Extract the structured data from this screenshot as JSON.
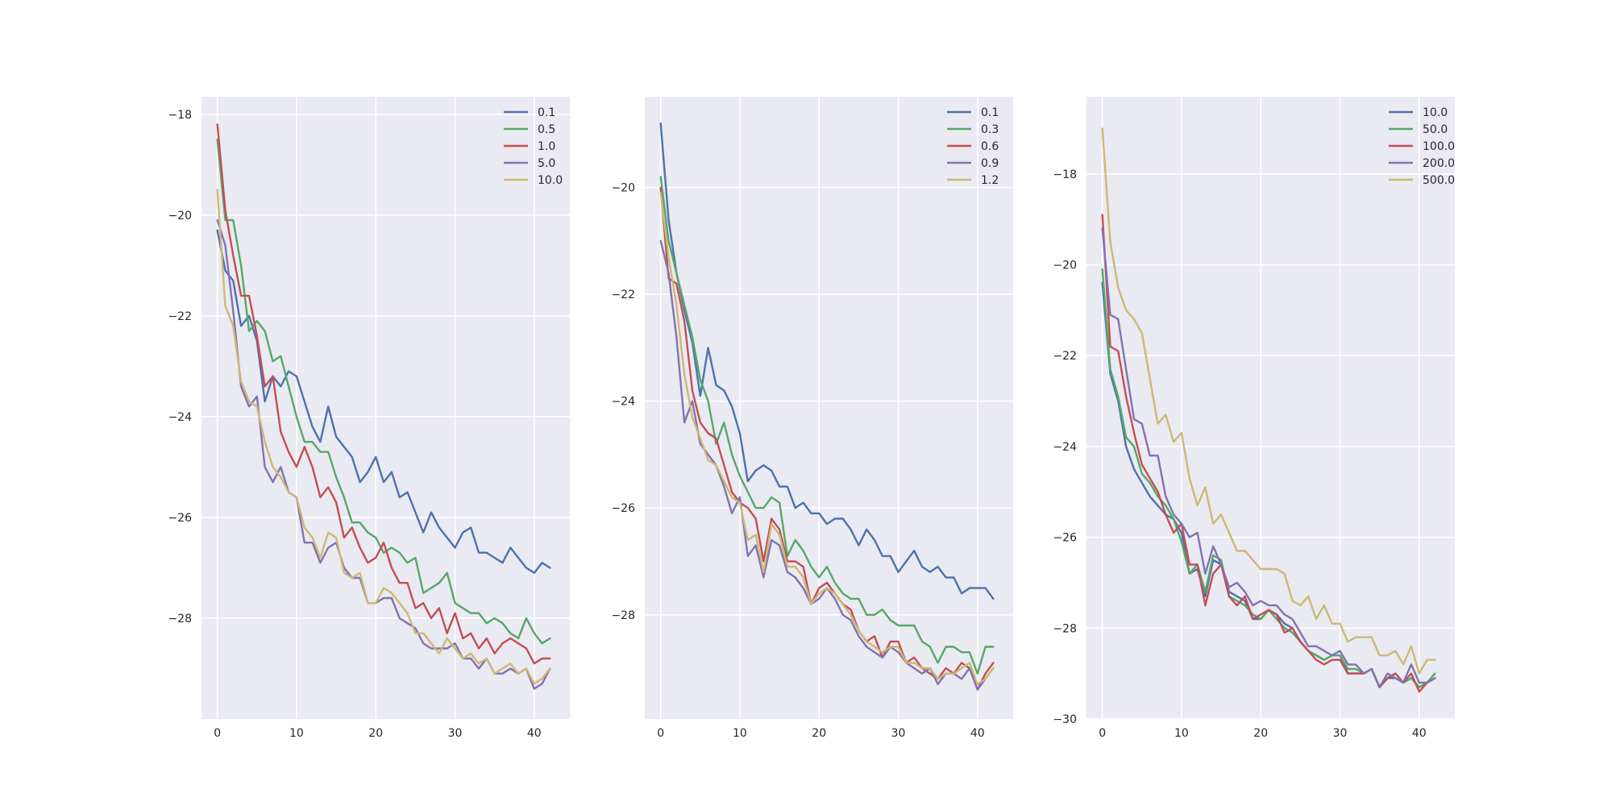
{
  "palette": [
    "#4c72b0",
    "#55a868",
    "#c44e52",
    "#8172b2",
    "#ccb974"
  ],
  "chart_data": [
    {
      "type": "line",
      "grid": true,
      "legend_position": "top-right",
      "xlim": [
        -2,
        44.5
      ],
      "ylim": [
        -30.0,
        -17.65
      ],
      "xticks": [
        0,
        10,
        20,
        30,
        40
      ],
      "yticks": [
        -28,
        -26,
        -24,
        -22,
        -20,
        -18
      ],
      "series": [
        {
          "name": "0.1",
          "values": [
            -20.3,
            -21.1,
            -21.3,
            -22.2,
            -22.0,
            -22.5,
            -23.7,
            -23.2,
            -23.4,
            -23.1,
            -23.2,
            -23.7,
            -24.2,
            -24.5,
            -23.8,
            -24.4,
            -24.6,
            -24.8,
            -25.3,
            -25.1,
            -24.8,
            -25.3,
            -25.1,
            -25.6,
            -25.5,
            -25.9,
            -26.3,
            -25.9,
            -26.2,
            -26.4,
            -26.6,
            -26.3,
            -26.2,
            -26.7,
            -26.7,
            -26.8,
            -26.9,
            -26.6,
            -26.8,
            -27.0,
            -27.1,
            -26.9,
            -27.0
          ]
        },
        {
          "name": "0.5",
          "values": [
            -18.5,
            -20.1,
            -20.1,
            -21.0,
            -22.3,
            -22.1,
            -22.3,
            -22.9,
            -22.8,
            -23.4,
            -24.0,
            -24.5,
            -24.5,
            -24.7,
            -24.7,
            -25.2,
            -25.6,
            -26.1,
            -26.1,
            -26.3,
            -26.4,
            -26.7,
            -26.6,
            -26.7,
            -26.9,
            -26.8,
            -27.5,
            -27.4,
            -27.3,
            -27.1,
            -27.7,
            -27.8,
            -27.9,
            -27.9,
            -28.1,
            -28.0,
            -28.1,
            -28.3,
            -28.4,
            -28.0,
            -28.3,
            -28.5,
            -28.4
          ]
        },
        {
          "name": "1.0",
          "values": [
            -18.2,
            -19.9,
            -20.8,
            -21.6,
            -21.6,
            -22.4,
            -23.4,
            -23.2,
            -24.3,
            -24.7,
            -25.0,
            -24.6,
            -25.0,
            -25.6,
            -25.4,
            -25.7,
            -26.4,
            -26.2,
            -26.6,
            -26.9,
            -26.8,
            -26.5,
            -27.0,
            -27.3,
            -27.3,
            -27.8,
            -27.7,
            -28.0,
            -27.8,
            -28.3,
            -27.9,
            -28.4,
            -28.3,
            -28.6,
            -28.4,
            -28.7,
            -28.5,
            -28.4,
            -28.5,
            -28.6,
            -28.9,
            -28.8,
            -28.8
          ]
        },
        {
          "name": "5.0",
          "values": [
            -20.1,
            -20.6,
            -21.9,
            -23.4,
            -23.8,
            -23.6,
            -25.0,
            -25.3,
            -25.0,
            -25.5,
            -25.6,
            -26.5,
            -26.5,
            -26.9,
            -26.6,
            -26.5,
            -27.0,
            -27.2,
            -27.2,
            -27.7,
            -27.7,
            -27.6,
            -27.6,
            -28.0,
            -28.1,
            -28.2,
            -28.5,
            -28.6,
            -28.6,
            -28.6,
            -28.5,
            -28.8,
            -28.8,
            -29.0,
            -28.8,
            -29.1,
            -29.1,
            -29.0,
            -29.1,
            -29.0,
            -29.4,
            -29.3,
            -29.0
          ]
        },
        {
          "name": "10.0",
          "values": [
            -19.5,
            -21.8,
            -22.2,
            -23.3,
            -23.7,
            -23.8,
            -24.5,
            -25.0,
            -25.2,
            -25.5,
            -25.6,
            -26.2,
            -26.4,
            -26.8,
            -26.3,
            -26.4,
            -27.1,
            -27.2,
            -27.1,
            -27.7,
            -27.7,
            -27.4,
            -27.5,
            -27.7,
            -27.9,
            -28.3,
            -28.3,
            -28.5,
            -28.7,
            -28.4,
            -28.6,
            -28.8,
            -28.7,
            -28.9,
            -28.8,
            -29.1,
            -29.0,
            -28.9,
            -29.1,
            -29.0,
            -29.3,
            -29.2,
            -29.0
          ]
        }
      ]
    },
    {
      "type": "line",
      "grid": true,
      "legend_position": "top-right",
      "xlim": [
        -2,
        44.5
      ],
      "ylim": [
        -29.95,
        -18.3
      ],
      "xticks": [
        0,
        10,
        20,
        30,
        40
      ],
      "yticks": [
        -28,
        -26,
        -24,
        -22,
        -20
      ],
      "series": [
        {
          "name": "0.1",
          "values": [
            -18.8,
            -20.6,
            -21.6,
            -22.3,
            -22.9,
            -23.9,
            -23.0,
            -23.7,
            -23.8,
            -24.1,
            -24.6,
            -25.5,
            -25.3,
            -25.2,
            -25.3,
            -25.6,
            -25.6,
            -26.0,
            -25.9,
            -26.1,
            -26.1,
            -26.3,
            -26.2,
            -26.2,
            -26.4,
            -26.7,
            -26.4,
            -26.6,
            -26.9,
            -26.9,
            -27.2,
            -27.0,
            -26.8,
            -27.1,
            -27.2,
            -27.1,
            -27.3,
            -27.3,
            -27.6,
            -27.5,
            -27.5,
            -27.5,
            -27.7
          ]
        },
        {
          "name": "0.3",
          "values": [
            -19.8,
            -21.0,
            -21.6,
            -22.2,
            -22.8,
            -23.6,
            -24.0,
            -24.8,
            -24.4,
            -25.0,
            -25.4,
            -25.7,
            -26.0,
            -26.0,
            -25.8,
            -25.9,
            -26.9,
            -26.6,
            -26.8,
            -27.1,
            -27.3,
            -27.1,
            -27.4,
            -27.6,
            -27.7,
            -27.7,
            -28.0,
            -28.0,
            -27.9,
            -28.1,
            -28.2,
            -28.2,
            -28.2,
            -28.5,
            -28.6,
            -28.9,
            -28.6,
            -28.6,
            -28.7,
            -28.7,
            -29.1,
            -28.6,
            -28.6
          ]
        },
        {
          "name": "0.6",
          "values": [
            -20.0,
            -21.7,
            -21.8,
            -22.5,
            -23.8,
            -24.4,
            -24.6,
            -24.7,
            -25.2,
            -25.7,
            -25.9,
            -26.0,
            -26.2,
            -27.0,
            -26.2,
            -26.4,
            -27.0,
            -27.0,
            -27.1,
            -27.8,
            -27.5,
            -27.4,
            -27.6,
            -27.8,
            -27.9,
            -28.3,
            -28.5,
            -28.4,
            -28.8,
            -28.5,
            -28.5,
            -28.9,
            -28.8,
            -29.0,
            -29.1,
            -29.2,
            -29.0,
            -29.1,
            -28.9,
            -29.0,
            -29.4,
            -29.1,
            -28.9
          ]
        },
        {
          "name": "0.9",
          "values": [
            -21.0,
            -21.6,
            -22.8,
            -24.4,
            -24.0,
            -24.8,
            -25.0,
            -25.2,
            -25.6,
            -26.1,
            -25.8,
            -26.9,
            -26.7,
            -27.3,
            -26.6,
            -26.7,
            -27.2,
            -27.3,
            -27.5,
            -27.8,
            -27.7,
            -27.5,
            -27.7,
            -28.0,
            -28.1,
            -28.4,
            -28.6,
            -28.7,
            -28.8,
            -28.6,
            -28.7,
            -28.9,
            -29.0,
            -29.1,
            -29.0,
            -29.3,
            -29.1,
            -29.1,
            -29.2,
            -29.0,
            -29.4,
            -29.2,
            -29.0
          ]
        },
        {
          "name": "1.2",
          "values": [
            -20.1,
            -21.3,
            -22.2,
            -23.5,
            -24.3,
            -24.7,
            -25.1,
            -25.2,
            -25.5,
            -25.8,
            -25.9,
            -26.6,
            -26.5,
            -27.2,
            -26.3,
            -26.5,
            -27.1,
            -27.1,
            -27.3,
            -27.8,
            -27.6,
            -27.5,
            -27.6,
            -27.8,
            -28.0,
            -28.3,
            -28.5,
            -28.6,
            -28.7,
            -28.6,
            -28.6,
            -28.9,
            -28.9,
            -29.0,
            -29.0,
            -29.2,
            -29.1,
            -29.1,
            -29.0,
            -28.9,
            -29.3,
            -29.2,
            -29.0
          ]
        }
      ]
    },
    {
      "type": "line",
      "grid": true,
      "legend_position": "top-right",
      "xlim": [
        -2,
        44.5
      ],
      "ylim": [
        -30.0,
        -16.3
      ],
      "xticks": [
        0,
        10,
        20,
        30,
        40
      ],
      "yticks": [
        -30,
        -28,
        -26,
        -24,
        -22,
        -20,
        -18
      ],
      "series": [
        {
          "name": "10.0",
          "values": [
            -20.4,
            -22.4,
            -23.0,
            -24.0,
            -24.5,
            -24.8,
            -25.1,
            -25.3,
            -25.5,
            -25.6,
            -25.9,
            -26.8,
            -26.7,
            -27.3,
            -26.5,
            -26.6,
            -27.2,
            -27.3,
            -27.4,
            -27.8,
            -27.8,
            -27.6,
            -27.7,
            -27.9,
            -28.0,
            -28.3,
            -28.5,
            -28.6,
            -28.7,
            -28.6,
            -28.6,
            -29.0,
            -29.0,
            -29.0,
            -28.9,
            -29.3,
            -29.1,
            -29.1,
            -29.2,
            -29.1,
            -29.3,
            -29.2,
            -29.1
          ]
        },
        {
          "name": "50.0",
          "values": [
            -20.1,
            -22.3,
            -22.9,
            -23.8,
            -24.0,
            -24.6,
            -24.8,
            -25.1,
            -25.3,
            -25.6,
            -26.1,
            -26.8,
            -26.6,
            -27.2,
            -26.4,
            -26.5,
            -27.3,
            -27.4,
            -27.5,
            -27.7,
            -27.8,
            -27.6,
            -27.8,
            -28.0,
            -28.1,
            -28.3,
            -28.5,
            -28.6,
            -28.7,
            -28.6,
            -28.6,
            -28.9,
            -28.9,
            -29.0,
            -28.9,
            -29.3,
            -29.1,
            -29.0,
            -29.2,
            -29.1,
            -29.3,
            -29.2,
            -29.0
          ]
        },
        {
          "name": "100.0",
          "values": [
            -18.9,
            -21.8,
            -21.9,
            -22.9,
            -23.7,
            -24.4,
            -24.7,
            -25.0,
            -25.5,
            -25.9,
            -25.7,
            -26.6,
            -26.6,
            -27.5,
            -26.8,
            -26.6,
            -27.3,
            -27.5,
            -27.3,
            -27.8,
            -27.7,
            -27.6,
            -27.7,
            -28.1,
            -28.0,
            -28.3,
            -28.5,
            -28.7,
            -28.8,
            -28.7,
            -28.7,
            -29.0,
            -29.0,
            -29.0,
            -28.9,
            -29.3,
            -29.1,
            -29.0,
            -29.2,
            -29.0,
            -29.4,
            -29.2,
            -29.1
          ]
        },
        {
          "name": "200.0",
          "values": [
            -19.2,
            -21.1,
            -21.2,
            -22.3,
            -23.4,
            -23.5,
            -24.2,
            -24.2,
            -25.1,
            -25.5,
            -25.7,
            -26.0,
            -25.9,
            -26.8,
            -26.2,
            -26.6,
            -27.1,
            -27.0,
            -27.2,
            -27.5,
            -27.4,
            -27.5,
            -27.5,
            -27.7,
            -27.8,
            -28.1,
            -28.4,
            -28.4,
            -28.5,
            -28.6,
            -28.5,
            -28.8,
            -28.8,
            -29.0,
            -28.9,
            -29.3,
            -29.0,
            -29.1,
            -29.2,
            -28.8,
            -29.2,
            -29.2,
            -29.1
          ]
        },
        {
          "name": "500.0",
          "values": [
            -17.0,
            -19.5,
            -20.5,
            -21.0,
            -21.2,
            -21.5,
            -22.5,
            -23.5,
            -23.3,
            -23.9,
            -23.7,
            -24.7,
            -25.3,
            -24.9,
            -25.7,
            -25.5,
            -25.9,
            -26.3,
            -26.3,
            -26.5,
            -26.7,
            -26.7,
            -26.7,
            -26.8,
            -27.4,
            -27.5,
            -27.3,
            -27.8,
            -27.5,
            -27.9,
            -27.9,
            -28.3,
            -28.2,
            -28.2,
            -28.2,
            -28.6,
            -28.6,
            -28.5,
            -28.8,
            -28.4,
            -29.0,
            -28.7,
            -28.7
          ]
        }
      ]
    }
  ]
}
